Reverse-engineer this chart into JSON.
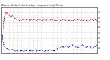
{
  "title": "Milwaukee Weather Outdoor Humidity vs. Temperature Every 5 Minutes",
  "bg_color": "#ffffff",
  "grid_color": "#c8c8c8",
  "red_color": "#cc0000",
  "blue_color": "#0000cc",
  "ylim": [
    10,
    100
  ],
  "ylabel_right_ticks": [
    20,
    30,
    40,
    50,
    60,
    70,
    80,
    90
  ],
  "red_data": [
    28,
    32,
    40,
    58,
    72,
    82,
    86,
    90,
    88,
    87,
    85,
    84,
    83,
    82,
    83,
    84,
    82,
    81,
    79,
    78,
    77,
    76,
    77,
    76,
    75,
    74,
    75,
    74,
    75,
    76,
    77,
    76,
    75,
    77,
    76,
    75,
    77,
    76,
    75,
    74,
    75,
    76,
    74,
    75,
    76,
    77,
    76,
    75,
    74,
    75,
    76,
    75,
    77,
    76,
    75,
    74,
    75,
    76,
    77,
    75,
    74,
    75,
    76,
    77,
    76,
    75,
    74,
    75,
    76,
    75,
    76,
    77,
    75,
    74,
    73,
    74,
    75,
    74,
    73,
    72,
    73,
    74,
    75,
    76,
    77,
    76,
    75,
    74,
    75,
    76,
    75,
    74,
    73,
    74,
    75,
    74,
    73,
    74,
    75,
    76,
    75,
    74,
    75,
    76,
    77,
    76,
    75,
    74,
    75,
    76,
    75,
    74,
    73,
    74,
    75,
    74,
    73,
    72,
    73,
    74,
    75,
    76,
    77,
    76,
    75,
    74,
    75,
    76,
    75,
    74
  ],
  "blue_data": [
    48,
    46,
    42,
    32,
    26,
    22,
    20,
    19,
    18,
    17,
    16,
    17,
    16,
    15,
    16,
    17,
    16,
    15,
    14,
    13,
    14,
    15,
    14,
    13,
    12,
    13,
    14,
    15,
    14,
    13,
    12,
    13,
    14,
    15,
    14,
    15,
    16,
    15,
    14,
    13,
    14,
    15,
    14,
    13,
    14,
    15,
    16,
    15,
    14,
    13,
    14,
    15,
    14,
    15,
    16,
    15,
    14,
    13,
    12,
    13,
    14,
    15,
    14,
    13,
    14,
    15,
    16,
    15,
    14,
    13,
    14,
    15,
    14,
    15,
    16,
    17,
    18,
    19,
    20,
    19,
    20,
    21,
    22,
    23,
    22,
    21,
    22,
    23,
    24,
    23,
    22,
    21,
    22,
    23,
    24,
    25,
    26,
    25,
    24,
    23,
    22,
    21,
    22,
    21,
    20,
    21,
    22,
    23,
    24,
    25,
    26,
    25,
    24,
    23,
    22,
    21,
    22,
    23,
    24,
    23,
    22,
    21,
    20,
    19,
    20,
    21,
    22,
    23,
    24,
    25
  ],
  "n_xticks": 25,
  "figsize": [
    1.6,
    0.87
  ],
  "dpi": 100
}
